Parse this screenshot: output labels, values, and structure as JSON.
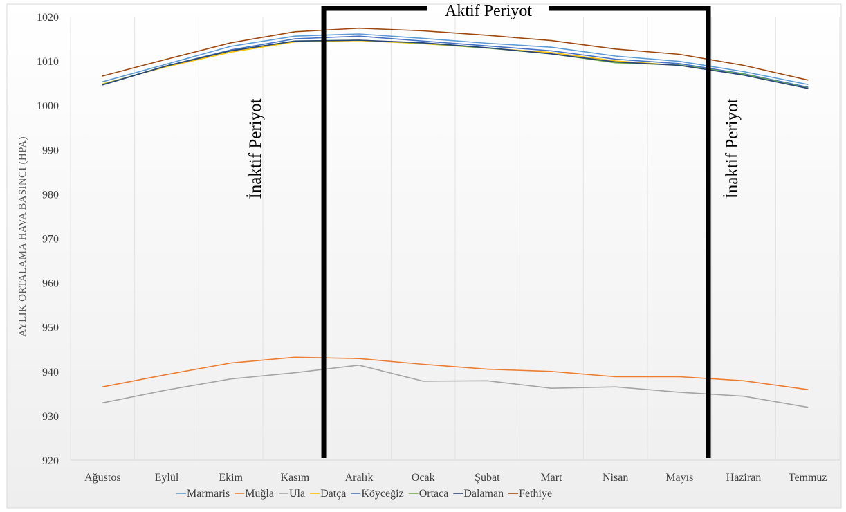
{
  "chart_data": {
    "type": "line",
    "title": "",
    "xlabel": "",
    "ylabel": "AYLIK ORTALAMA HAVA BASINCI (HPA)",
    "ylim": [
      920,
      1020
    ],
    "yticks": [
      920,
      930,
      940,
      950,
      960,
      970,
      980,
      990,
      1000,
      1010,
      1020
    ],
    "grid": "vertical",
    "legend_position": "bottom",
    "categories": [
      "Ağustos",
      "Eylül",
      "Ekim",
      "Kasım",
      "Aralık",
      "Ocak",
      "Şubat",
      "Mart",
      "Nisan",
      "Mayıs",
      "Haziran",
      "Temmuz"
    ],
    "series": [
      {
        "name": "Marmaris",
        "color": "#5B9BD5",
        "values": [
          1005.3,
          1009.3,
          1013.3,
          1015.6,
          1016.1,
          1015.1,
          1014.0,
          1013.1,
          1011.1,
          1009.9,
          1007.6,
          1004.7
        ]
      },
      {
        "name": "Muğla",
        "color": "#ED7D31",
        "values": [
          936.5,
          939.3,
          941.9,
          943.2,
          942.9,
          941.6,
          940.5,
          940.0,
          938.8,
          938.8,
          937.9,
          935.9
        ]
      },
      {
        "name": "Ula",
        "color": "#A5A5A5",
        "values": [
          932.9,
          935.8,
          938.3,
          939.7,
          941.4,
          937.8,
          937.9,
          936.2,
          936.5,
          935.3,
          934.4,
          931.9
        ]
      },
      {
        "name": "Datça",
        "color": "#FFC000",
        "values": [
          1004.8,
          1008.7,
          1012.0,
          1014.3,
          1014.6,
          1013.9,
          1012.9,
          1011.9,
          1010.0,
          1009.0,
          1006.9,
          1003.9
        ]
      },
      {
        "name": "Köyceğiz",
        "color": "#4472C4",
        "values": [
          1004.6,
          1008.9,
          1012.5,
          1015.0,
          1015.6,
          1014.5,
          1013.4,
          1012.3,
          1010.4,
          1009.4,
          1007.1,
          1004.1
        ]
      },
      {
        "name": "Ortaca",
        "color": "#70AD47",
        "values": [
          1004.7,
          1008.9,
          1012.3,
          1014.5,
          1014.7,
          1014.0,
          1012.9,
          1011.6,
          1009.6,
          1009.1,
          1007.0,
          1003.9
        ]
      },
      {
        "name": "Dalaman",
        "color": "#264478",
        "values": [
          1004.6,
          1008.9,
          1012.3,
          1014.5,
          1014.7,
          1014.1,
          1013.0,
          1011.6,
          1009.8,
          1009.0,
          1006.8,
          1003.8
        ]
      },
      {
        "name": "Fethiye",
        "color": "#9E480E",
        "values": [
          1006.6,
          1010.4,
          1014.1,
          1016.6,
          1017.4,
          1016.8,
          1015.8,
          1014.6,
          1012.7,
          1011.5,
          1009.0,
          1005.7
        ]
      }
    ],
    "annotations": {
      "active_period_label": "Aktif Periyot",
      "inactive_left_label": "İnaktif Periyot",
      "inactive_right_label": "İnaktif Periyot",
      "active_period_span": [
        "Kasım",
        "Mayıs"
      ]
    }
  }
}
